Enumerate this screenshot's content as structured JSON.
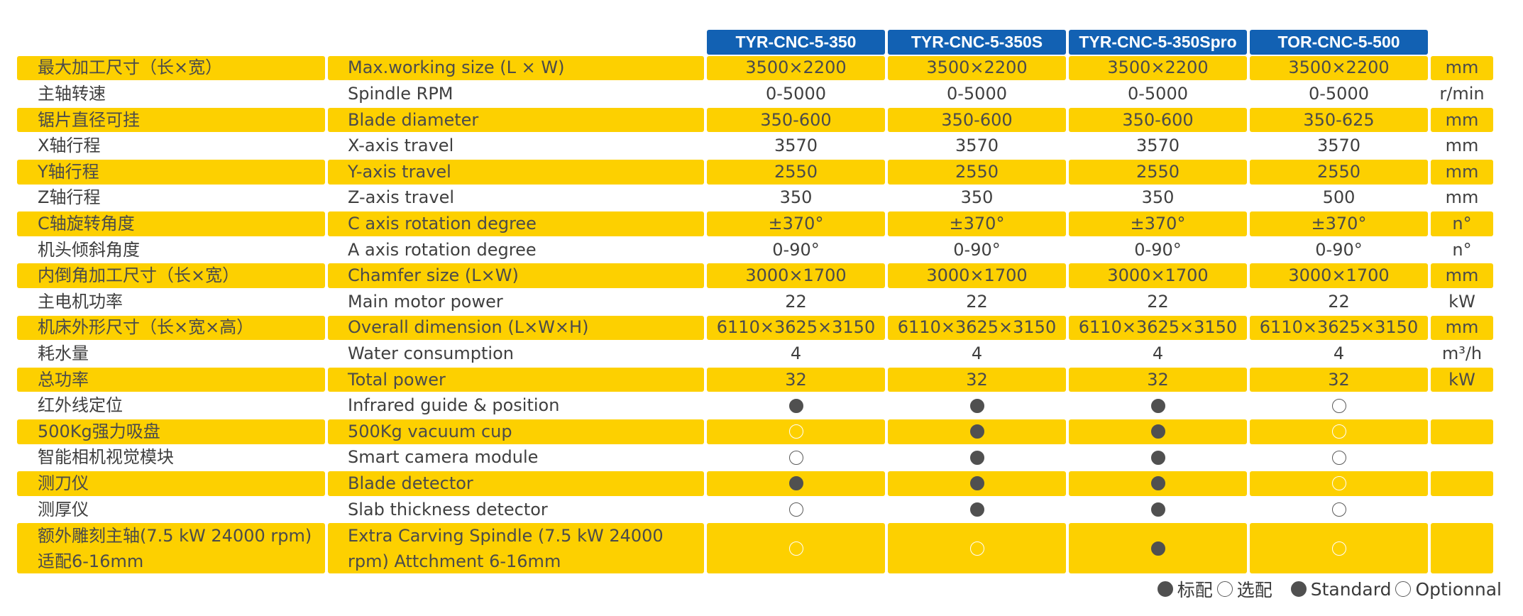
{
  "models": [
    "TYR-CNC-5-350",
    "TYR-CNC-5-350S",
    "TYR-CNC-5-350Spro",
    "TOR-CNC-5-500"
  ],
  "rows": [
    {
      "cn": "最大加工尺寸（长×宽）",
      "en": "Max.working size (L × W)",
      "values": [
        "3500×2200",
        "3500×2200",
        "3500×2200",
        "3500×2200"
      ],
      "unit": "mm",
      "type": "text"
    },
    {
      "cn": "主轴转速",
      "en": "Spindle RPM",
      "values": [
        "0-5000",
        "0-5000",
        "0-5000",
        "0-5000"
      ],
      "unit": "r/min",
      "type": "text"
    },
    {
      "cn": "锯片直径可挂",
      "en": "Blade diameter",
      "values": [
        "350-600",
        "350-600",
        "350-600",
        "350-625"
      ],
      "unit": "mm",
      "type": "text"
    },
    {
      "cn": "X轴行程",
      "en": "X-axis travel",
      "values": [
        "3570",
        "3570",
        "3570",
        "3570"
      ],
      "unit": "mm",
      "type": "text"
    },
    {
      "cn": "Y轴行程",
      "en": "Y-axis travel",
      "values": [
        "2550",
        "2550",
        "2550",
        "2550"
      ],
      "unit": "mm",
      "type": "text"
    },
    {
      "cn": "Z轴行程",
      "en": "Z-axis travel",
      "values": [
        "350",
        "350",
        "350",
        "500"
      ],
      "unit": "mm",
      "type": "text"
    },
    {
      "cn": "C轴旋转角度",
      "en": "C axis rotation degree",
      "values": [
        "±370°",
        "±370°",
        "±370°",
        "±370°"
      ],
      "unit": "n°",
      "type": "text"
    },
    {
      "cn": "机头倾斜角度",
      "en": "A axis rotation degree",
      "values": [
        "0-90°",
        "0-90°",
        "0-90°",
        "0-90°"
      ],
      "unit": "n°",
      "type": "text"
    },
    {
      "cn": "内倒角加工尺寸（长×宽）",
      "en": "Chamfer size (L×W)",
      "values": [
        "3000×1700",
        "3000×1700",
        "3000×1700",
        "3000×1700"
      ],
      "unit": "mm",
      "type": "text"
    },
    {
      "cn": "主电机功率",
      "en": "Main motor power",
      "values": [
        "22",
        "22",
        "22",
        "22"
      ],
      "unit": "kW",
      "type": "text"
    },
    {
      "cn": "机床外形尺寸（长×宽×高）",
      "en": "Overall dimension (L×W×H)",
      "values": [
        "6110×3625×3150",
        "6110×3625×3150",
        "6110×3625×3150",
        "6110×3625×3150"
      ],
      "unit": "mm",
      "type": "text"
    },
    {
      "cn": "耗水量",
      "en": "Water consumption",
      "values": [
        "4",
        "4",
        "4",
        "4"
      ],
      "unit": "m³/h",
      "type": "text"
    },
    {
      "cn": "总功率",
      "en": "Total power",
      "values": [
        "32",
        "32",
        "32",
        "32"
      ],
      "unit": "kW",
      "type": "text"
    },
    {
      "cn": "红外线定位",
      "en": "Infrared guide & position",
      "values": [
        "standard",
        "standard",
        "standard",
        "optional"
      ],
      "unit": "",
      "type": "dot"
    },
    {
      "cn": "500Kg强力吸盘",
      "en": "500Kg vacuum cup",
      "values": [
        "optional",
        "standard",
        "standard",
        "optional"
      ],
      "unit": "",
      "type": "dot"
    },
    {
      "cn": "智能相机视觉模块",
      "en": "Smart camera module",
      "values": [
        "optional",
        "standard",
        "standard",
        "optional"
      ],
      "unit": "",
      "type": "dot"
    },
    {
      "cn": "测刀仪",
      "en": "Blade detector",
      "values": [
        "standard",
        "standard",
        "standard",
        "optional"
      ],
      "unit": "",
      "type": "dot"
    },
    {
      "cn": "测厚仪",
      "en": "Slab thickness detector",
      "values": [
        "optional",
        "standard",
        "standard",
        "optional"
      ],
      "unit": "",
      "type": "dot"
    },
    {
      "cn": "额外雕刻主轴(7.5 kW 24000 rpm) 适配6-16mm",
      "en": "Extra Carving Spindle (7.5 kW 24000 rpm) Attchment 6-16mm",
      "values": [
        "optional",
        "optional",
        "standard",
        "optional"
      ],
      "unit": "",
      "type": "dot",
      "tall": true
    }
  ],
  "legend": {
    "standard_cn": "标配",
    "optional_cn": "选配",
    "standard_en": "Standard",
    "optional_en": "Optionnal"
  },
  "colors": {
    "yellow": "#fdd000",
    "blue": "#1261b3",
    "dot": "#505050"
  }
}
